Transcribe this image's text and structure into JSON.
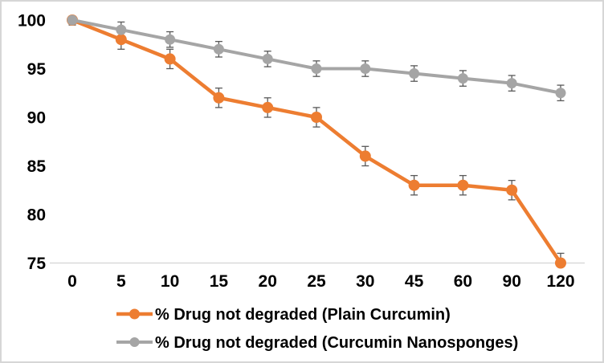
{
  "chart_data": {
    "type": "line",
    "title": "",
    "xlabel": "",
    "ylabel": "",
    "categories": [
      "0",
      "5",
      "10",
      "15",
      "20",
      "25",
      "30",
      "45",
      "60",
      "90",
      "120"
    ],
    "ylim": [
      75,
      100
    ],
    "yticks": [
      100,
      95,
      90,
      85,
      80,
      75
    ],
    "grid": "off",
    "legend_position": "bottom",
    "series": [
      {
        "name": "% Drug not degraded (Plain Curcumin)",
        "color": "#ED7D31",
        "values": [
          100,
          98,
          96,
          92,
          91,
          90,
          86,
          83,
          83,
          82.5,
          75
        ],
        "error": [
          0.5,
          1,
          1,
          1,
          1,
          1,
          1,
          1,
          1,
          1,
          1
        ]
      },
      {
        "name": "% Drug not degraded (Curcumin Nanosponges)",
        "color": "#A5A5A5",
        "values": [
          100,
          99,
          98,
          97,
          96,
          95,
          95,
          94.5,
          94,
          93.5,
          92.5
        ],
        "error": [
          0.5,
          0.8,
          0.8,
          0.8,
          0.8,
          0.8,
          0.8,
          0.8,
          0.8,
          0.8,
          0.8
        ]
      }
    ],
    "error_bar_color": "#595959",
    "axis_line_color": "#D9D9D9",
    "text_color": "#000000"
  }
}
